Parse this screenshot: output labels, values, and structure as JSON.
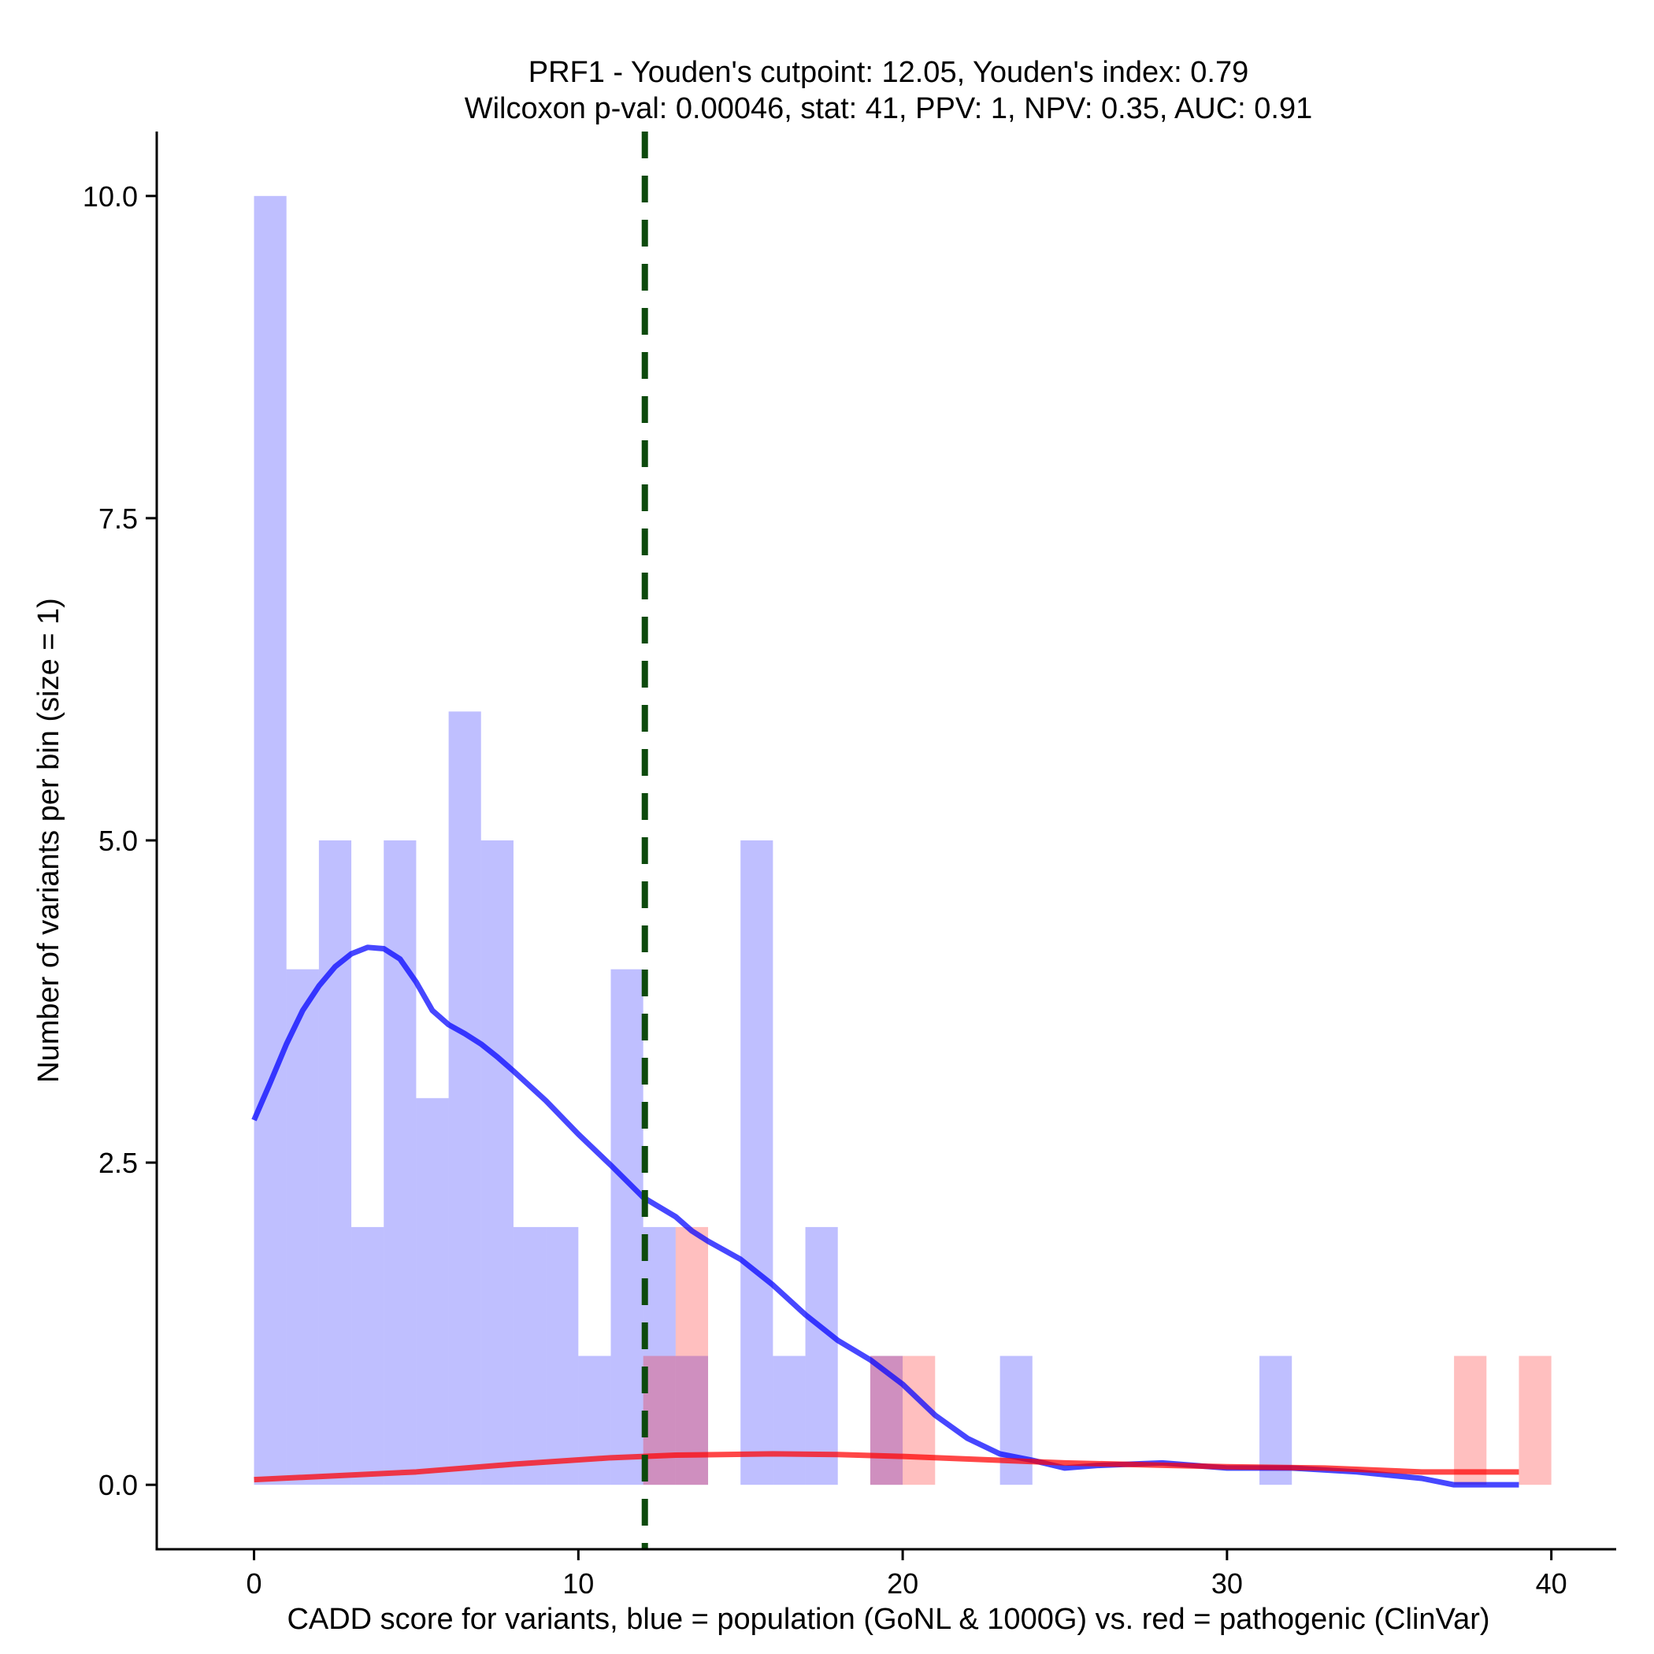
{
  "chart_data": {
    "type": "histogram",
    "title": "PRF1 - Youden's cutpoint: 12.05, Youden's index: 0.79",
    "subtitle": "Wilcoxon p-val: 0.00046, stat: 41, PPV: 1, NPV: 0.35, AUC: 0.91",
    "xlabel": "CADD score for variants, blue = population (GoNL & 1000G) vs. red = pathogenic (ClinVar)",
    "ylabel": "Number of variants per bin (size = 1)",
    "xlim": [
      -3.0,
      42.0
    ],
    "ylim": [
      -0.5,
      10.5
    ],
    "x_ticks": [
      0,
      10,
      20,
      30,
      40
    ],
    "x_tick_labels": [
      "0",
      "10",
      "20",
      "30",
      "40"
    ],
    "y_ticks": [
      0,
      2.5,
      5,
      7.5,
      10
    ],
    "y_tick_labels": [
      "0.0",
      "2.5",
      "5.0",
      "7.5",
      "10.0"
    ],
    "bin_width": 1,
    "cutpoint": 12.05,
    "series": [
      {
        "name": "population (GoNL & 1000G)",
        "color": "#0000ff",
        "bar_opacity": 0.25,
        "bins": [
          {
            "x": 0,
            "count": 10
          },
          {
            "x": 1,
            "count": 4
          },
          {
            "x": 2,
            "count": 5
          },
          {
            "x": 3,
            "count": 2
          },
          {
            "x": 4,
            "count": 5
          },
          {
            "x": 5,
            "count": 3
          },
          {
            "x": 6,
            "count": 6
          },
          {
            "x": 7,
            "count": 5
          },
          {
            "x": 8,
            "count": 2
          },
          {
            "x": 9,
            "count": 2
          },
          {
            "x": 10,
            "count": 1
          },
          {
            "x": 11,
            "count": 4
          },
          {
            "x": 12,
            "count": 2
          },
          {
            "x": 13,
            "count": 1
          },
          {
            "x": 15,
            "count": 5
          },
          {
            "x": 16,
            "count": 1
          },
          {
            "x": 17,
            "count": 2
          },
          {
            "x": 19,
            "count": 1
          },
          {
            "x": 23,
            "count": 1
          },
          {
            "x": 31,
            "count": 1
          }
        ],
        "density": {
          "x": [
            0,
            0.5,
            1,
            1.5,
            2,
            2.5,
            3,
            3.5,
            4,
            4.5,
            5,
            5.5,
            6,
            6.5,
            7,
            7.5,
            8,
            9,
            10,
            11,
            12,
            13,
            13.5,
            14,
            15,
            16,
            17,
            18,
            19,
            20,
            21,
            22,
            23,
            24,
            25,
            26,
            28,
            30,
            32,
            34,
            36,
            37,
            39
          ],
          "y": [
            2.83,
            3.12,
            3.42,
            3.68,
            3.87,
            4.02,
            4.12,
            4.17,
            4.16,
            4.08,
            3.9,
            3.68,
            3.57,
            3.5,
            3.42,
            3.32,
            3.21,
            2.98,
            2.72,
            2.48,
            2.23,
            2.08,
            1.97,
            1.89,
            1.75,
            1.55,
            1.32,
            1.12,
            0.97,
            0.78,
            0.54,
            0.36,
            0.24,
            0.19,
            0.13,
            0.15,
            0.17,
            0.13,
            0.13,
            0.1,
            0.05,
            0.0,
            0.0
          ]
        }
      },
      {
        "name": "pathogenic (ClinVar)",
        "color": "#ff0000",
        "bar_opacity": 0.25,
        "bins": [
          {
            "x": 12,
            "count": 1
          },
          {
            "x": 13,
            "count": 2
          },
          {
            "x": 19,
            "count": 1
          },
          {
            "x": 20,
            "count": 1
          },
          {
            "x": 37,
            "count": 1
          },
          {
            "x": 39,
            "count": 1
          }
        ],
        "density": {
          "x": [
            0,
            5,
            8,
            11,
            13,
            16,
            18,
            20,
            25,
            30,
            33,
            36,
            39
          ],
          "y": [
            0.04,
            0.1,
            0.16,
            0.21,
            0.23,
            0.24,
            0.235,
            0.22,
            0.17,
            0.14,
            0.13,
            0.1,
            0.1
          ]
        }
      }
    ],
    "cutpoint_line_color": "#0d4a0d"
  }
}
